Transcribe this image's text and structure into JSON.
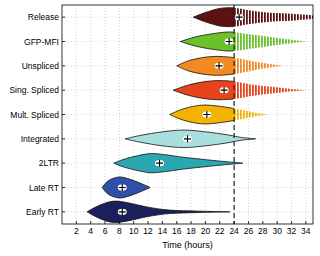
{
  "chart_data": {
    "type": "violin",
    "orientation": "horizontal",
    "x_label": "Time (hours)",
    "xlim": [
      0,
      35
    ],
    "xticks": [
      2,
      4,
      6,
      8,
      10,
      12,
      14,
      16,
      18,
      20,
      22,
      24,
      26,
      28,
      30,
      32,
      34
    ],
    "grid": true,
    "vline": 24,
    "categories": [
      "Release",
      "GFP-MFI",
      "Unspliced",
      "Sing. Spliced",
      "Mult. Spliced",
      "Integrated",
      "2LTR",
      "Late RT",
      "Early RT"
    ],
    "series": [
      {
        "color": "#5a1212",
        "x": [
          18.3,
          20,
          22,
          24,
          26,
          28,
          30,
          32,
          34,
          35.5
        ],
        "density": [
          0,
          0.4,
          0.75,
          0.8,
          0.6,
          0.45,
          0.35,
          0.3,
          0.2,
          0.1
        ],
        "median": 24.7,
        "observed_until": 24
      },
      {
        "color": "#6cc02a",
        "x": [
          16.5,
          19,
          22,
          24,
          27,
          30,
          32,
          34
        ],
        "density": [
          0,
          0.45,
          0.75,
          0.8,
          0.55,
          0.3,
          0.15,
          0
        ],
        "median": 23.3,
        "observed_until": 24
      },
      {
        "color": "#f28a22",
        "x": [
          16,
          18,
          21,
          24,
          27,
          29,
          30.8
        ],
        "density": [
          0,
          0.5,
          0.8,
          0.7,
          0.35,
          0.15,
          0
        ],
        "median": 21.9,
        "observed_until": 24
      },
      {
        "color": "#e8441c",
        "x": [
          15.5,
          18,
          21,
          24,
          27,
          30,
          32,
          34
        ],
        "density": [
          0,
          0.5,
          0.8,
          0.75,
          0.45,
          0.25,
          0.1,
          0
        ],
        "median": 22.6,
        "observed_until": 24
      },
      {
        "color": "#f2b400",
        "x": [
          15,
          17,
          19.5,
          22,
          25,
          27,
          28.7
        ],
        "density": [
          0,
          0.5,
          0.8,
          0.7,
          0.4,
          0.15,
          0
        ],
        "median": 20.2,
        "observed_until": 24
      },
      {
        "color": "#aadfdf",
        "x": [
          8.8,
          11,
          14,
          17,
          20,
          23,
          25,
          27
        ],
        "density": [
          0,
          0.3,
          0.6,
          0.75,
          0.6,
          0.35,
          0.12,
          0
        ],
        "median": 17.5
      },
      {
        "color": "#2aa7b1",
        "x": [
          7.2,
          9,
          12,
          14,
          17,
          20,
          23,
          25.2
        ],
        "density": [
          0,
          0.4,
          0.8,
          0.75,
          0.5,
          0.3,
          0.12,
          0
        ],
        "median": 13.6
      },
      {
        "color": "#2f4fa8",
        "x": [
          5.6,
          6.5,
          8,
          9.5,
          11,
          12.3
        ],
        "density": [
          0,
          0.6,
          0.9,
          0.7,
          0.35,
          0
        ],
        "median": 8.4
      },
      {
        "color": "#1b205c",
        "x": [
          3.5,
          5,
          7,
          9,
          12,
          15,
          19,
          23.4
        ],
        "density": [
          0,
          0.5,
          0.9,
          0.8,
          0.4,
          0.15,
          0.06,
          0
        ],
        "median": 8.4
      }
    ]
  }
}
